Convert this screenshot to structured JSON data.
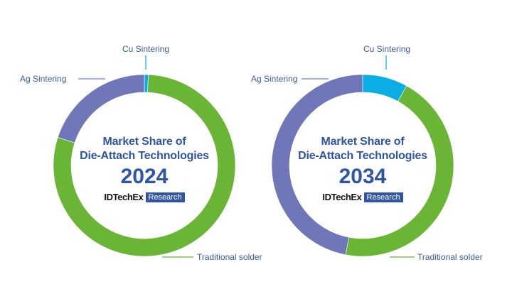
{
  "colors": {
    "traditional_solder": "#6bb536",
    "ag_sintering": "#6f77b9",
    "cu_sintering": "#0aaee4",
    "text_blue": "#3a5a9b",
    "title_blue": "#2f55a4"
  },
  "chart_data": [
    {
      "type": "pie",
      "donut": true,
      "title": "Market Share of Die-Attach Technologies",
      "year": "2024",
      "categories": [
        "Cu Sintering",
        "Traditional solder",
        "Ag Sintering"
      ],
      "values": [
        0.7,
        79.3,
        20.0
      ],
      "unit": "%"
    },
    {
      "type": "pie",
      "donut": true,
      "title": "Market Share of Die-Attach Technologies",
      "year": "2034",
      "categories": [
        "Cu Sintering",
        "Traditional solder",
        "Ag Sintering"
      ],
      "values": [
        8,
        45,
        47
      ],
      "unit": "%"
    }
  ],
  "charts": [
    {
      "title_line1": "Market Share of",
      "title_line2": "Die-Attach Technologies",
      "year": "2024",
      "logo_brand": "IDTechEx",
      "logo_tag": "Research",
      "labels": {
        "cu": "Cu Sintering",
        "ag": "Ag Sintering",
        "solder": "Traditional solder"
      }
    },
    {
      "title_line1": "Market Share of",
      "title_line2": "Die-Attach Technologies",
      "year": "2034",
      "logo_brand": "IDTechEx",
      "logo_tag": "Research",
      "labels": {
        "cu": "Cu Sintering",
        "ag": "Ag Sintering",
        "solder": "Traditional solder"
      }
    }
  ]
}
